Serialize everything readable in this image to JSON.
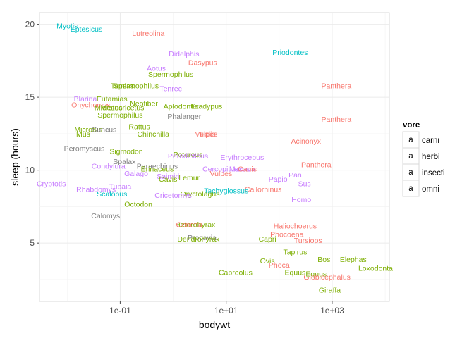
{
  "chart_data": {
    "type": "scatter",
    "xlabel": "bodywt",
    "ylabel": "sleep (hours)",
    "x_scale": "log10",
    "xlim": [
      0.003,
      12000
    ],
    "ylim": [
      1,
      20.8
    ],
    "x_ticks": [
      {
        "value": 0.1,
        "label": "1e-01"
      },
      {
        "value": 10,
        "label": "1e+01"
      },
      {
        "value": 1000,
        "label": "1e+03"
      }
    ],
    "y_ticks": [
      {
        "value": 5,
        "label": "5"
      },
      {
        "value": 10,
        "label": "10"
      },
      {
        "value": 15,
        "label": "15"
      },
      {
        "value": 20,
        "label": "20"
      }
    ],
    "grid": true,
    "legend": {
      "title": "vore",
      "position": "right",
      "key_glyph": "a",
      "entries": [
        {
          "name": "carni",
          "color": "#F8766D"
        },
        {
          "name": "herbi",
          "color": "#7CAE00"
        },
        {
          "name": "insecti",
          "color": "#00BFC4"
        },
        {
          "name": "omni",
          "color": "#C77CFF"
        }
      ]
    },
    "na_color": "#7F7F7F",
    "points": [
      {
        "label": "Myotis",
        "x": 0.01,
        "y": 19.9,
        "vore": "insecti"
      },
      {
        "label": "Eptesicus",
        "x": 0.023,
        "y": 19.7,
        "vore": "insecti"
      },
      {
        "label": "Lutreolina",
        "x": 0.34,
        "y": 19.4,
        "vore": "carni"
      },
      {
        "label": "Priodontes",
        "x": 161,
        "y": 18.1,
        "vore": "insecti"
      },
      {
        "label": "Didelphis",
        "x": 1.6,
        "y": 18.0,
        "vore": "omni"
      },
      {
        "label": "Dasypus",
        "x": 3.6,
        "y": 17.4,
        "vore": "carni"
      },
      {
        "label": "Aotus",
        "x": 0.48,
        "y": 17.0,
        "vore": "omni"
      },
      {
        "label": "Spermophilus",
        "x": 0.9,
        "y": 16.6,
        "vore": "herbi"
      },
      {
        "label": "Spermophilus",
        "x": 0.2,
        "y": 15.8,
        "vore": "herbi"
      },
      {
        "label": "Tamias",
        "x": 0.11,
        "y": 15.8,
        "vore": "herbi"
      },
      {
        "label": "Panthera",
        "x": 1200,
        "y": 15.8,
        "vore": "carni"
      },
      {
        "label": "Tenrec",
        "x": 0.9,
        "y": 15.6,
        "vore": "omni"
      },
      {
        "label": "Blarina",
        "x": 0.022,
        "y": 14.9,
        "vore": "omni"
      },
      {
        "label": "Eutamias",
        "x": 0.07,
        "y": 14.9,
        "vore": "herbi"
      },
      {
        "label": "Onychomys",
        "x": 0.028,
        "y": 14.5,
        "vore": "carni"
      },
      {
        "label": "Neofiber",
        "x": 0.28,
        "y": 14.6,
        "vore": "herbi"
      },
      {
        "label": "Aplodontia",
        "x": 1.4,
        "y": 14.4,
        "vore": "herbi"
      },
      {
        "label": "Bradypus",
        "x": 4.3,
        "y": 14.4,
        "vore": "herbi"
      },
      {
        "label": "Microtus",
        "x": 0.06,
        "y": 14.3,
        "vore": "herbi"
      },
      {
        "label": "Mesocricetus",
        "x": 0.11,
        "y": 14.3,
        "vore": "herbi"
      },
      {
        "label": "Spermophilus",
        "x": 0.1,
        "y": 13.8,
        "vore": "herbi"
      },
      {
        "label": "Phalanger",
        "x": 1.62,
        "y": 13.7,
        "vore": null
      },
      {
        "label": "Panthera",
        "x": 1200,
        "y": 13.5,
        "vore": "carni"
      },
      {
        "label": "Rattus",
        "x": 0.23,
        "y": 13.0,
        "vore": "herbi"
      },
      {
        "label": "Microtus",
        "x": 0.025,
        "y": 12.8,
        "vore": "herbi"
      },
      {
        "label": "Suncus",
        "x": 0.05,
        "y": 12.8,
        "vore": null
      },
      {
        "label": "Mus",
        "x": 0.02,
        "y": 12.5,
        "vore": "herbi"
      },
      {
        "label": "Chinchilla",
        "x": 0.42,
        "y": 12.5,
        "vore": "herbi"
      },
      {
        "label": "Vulpes",
        "x": 4.2,
        "y": 12.5,
        "vore": "carni"
      },
      {
        "label": "Felis",
        "x": 4.5,
        "y": 12.5,
        "vore": "carni"
      },
      {
        "label": "Acinonyx",
        "x": 320,
        "y": 12.0,
        "vore": "carni"
      },
      {
        "label": "Peromyscus",
        "x": 0.021,
        "y": 11.5,
        "vore": null
      },
      {
        "label": "Sigmodon",
        "x": 0.13,
        "y": 11.3,
        "vore": "herbi"
      },
      {
        "label": "Potorous",
        "x": 1.9,
        "y": 11.1,
        "vore": "herbi"
      },
      {
        "label": "Perodicticus",
        "x": 1.9,
        "y": 11.0,
        "vore": "omni"
      },
      {
        "label": "Erythrocebus",
        "x": 20,
        "y": 10.9,
        "vore": "omni"
      },
      {
        "label": "Spalax",
        "x": 0.12,
        "y": 10.6,
        "vore": null
      },
      {
        "label": "Condylura",
        "x": 0.06,
        "y": 10.3,
        "vore": "omni"
      },
      {
        "label": "Paraechinus",
        "x": 0.5,
        "y": 10.3,
        "vore": null
      },
      {
        "label": "Panthera",
        "x": 500,
        "y": 10.4,
        "vore": "carni"
      },
      {
        "label": "Erinaceus",
        "x": 0.5,
        "y": 10.1,
        "vore": "herbi"
      },
      {
        "label": "Cercopithecus",
        "x": 10,
        "y": 10.1,
        "vore": "omni"
      },
      {
        "label": "Macaca",
        "x": 20,
        "y": 10.1,
        "vore": "omni"
      },
      {
        "label": "Canis",
        "x": 25,
        "y": 10.1,
        "vore": "carni"
      },
      {
        "label": "Vulpes",
        "x": 8,
        "y": 9.8,
        "vore": "carni"
      },
      {
        "label": "Galago",
        "x": 0.2,
        "y": 9.8,
        "vore": "omni"
      },
      {
        "label": "Pan",
        "x": 200,
        "y": 9.7,
        "vore": "omni"
      },
      {
        "label": "Saimiri",
        "x": 0.8,
        "y": 9.6,
        "vore": "omni"
      },
      {
        "label": "Lemur",
        "x": 2,
        "y": 9.5,
        "vore": "herbi"
      },
      {
        "label": "Cavis",
        "x": 0.8,
        "y": 9.4,
        "vore": "herbi"
      },
      {
        "label": "Papio",
        "x": 95,
        "y": 9.4,
        "vore": "omni"
      },
      {
        "label": "Cryptotis",
        "x": 0.005,
        "y": 9.1,
        "vore": "omni"
      },
      {
        "label": "Sus",
        "x": 300,
        "y": 9.1,
        "vore": "omni"
      },
      {
        "label": "Tupaia",
        "x": 0.1,
        "y": 8.9,
        "vore": "omni"
      },
      {
        "label": "Rhabdomys",
        "x": 0.035,
        "y": 8.7,
        "vore": "omni"
      },
      {
        "label": "Callorhinus",
        "x": 50,
        "y": 8.7,
        "vore": "carni"
      },
      {
        "label": "Tachyglossus",
        "x": 10,
        "y": 8.6,
        "vore": "insecti"
      },
      {
        "label": "Oryctolagus",
        "x": 3.2,
        "y": 8.4,
        "vore": "herbi"
      },
      {
        "label": "Scalopus",
        "x": 0.07,
        "y": 8.4,
        "vore": "insecti"
      },
      {
        "label": "Cricetomys",
        "x": 1.0,
        "y": 8.3,
        "vore": "omni"
      },
      {
        "label": "Homo",
        "x": 262,
        "y": 8.0,
        "vore": "omni"
      },
      {
        "label": "Octodon",
        "x": 0.22,
        "y": 7.7,
        "vore": "herbi"
      },
      {
        "label": "Calomys",
        "x": 0.053,
        "y": 6.9,
        "vore": null
      },
      {
        "label": "Heterohyrax",
        "x": 2.6,
        "y": 6.3,
        "vore": "herbi"
      },
      {
        "label": "Genetta",
        "x": 2.0,
        "y": 6.3,
        "vore": "carni"
      },
      {
        "label": "Haliochoerus",
        "x": 200,
        "y": 6.2,
        "vore": "carni"
      },
      {
        "label": "Phocoena",
        "x": 140,
        "y": 5.6,
        "vore": "carni"
      },
      {
        "label": "Procavia",
        "x": 3.5,
        "y": 5.4,
        "vore": null
      },
      {
        "label": "Dendrohyrax",
        "x": 3.0,
        "y": 5.3,
        "vore": "herbi"
      },
      {
        "label": "Capri",
        "x": 60,
        "y": 5.3,
        "vore": "herbi"
      },
      {
        "label": "Tursiops",
        "x": 350,
        "y": 5.2,
        "vore": "carni"
      },
      {
        "label": "Tapirus",
        "x": 200,
        "y": 4.4,
        "vore": "herbi"
      },
      {
        "label": "Bos",
        "x": 700,
        "y": 3.9,
        "vore": "herbi"
      },
      {
        "label": "Elephas",
        "x": 2500,
        "y": 3.9,
        "vore": "herbi"
      },
      {
        "label": "Ovis",
        "x": 60,
        "y": 3.8,
        "vore": "herbi"
      },
      {
        "label": "Phoca",
        "x": 100,
        "y": 3.5,
        "vore": "carni"
      },
      {
        "label": "Loxodonta",
        "x": 6600,
        "y": 3.3,
        "vore": "herbi"
      },
      {
        "label": "Capreolus",
        "x": 15,
        "y": 3.0,
        "vore": "herbi"
      },
      {
        "label": "Equus",
        "x": 200,
        "y": 3.0,
        "vore": "herbi"
      },
      {
        "label": "Equus",
        "x": 500,
        "y": 2.9,
        "vore": "herbi"
      },
      {
        "label": "Globicephalus",
        "x": 800,
        "y": 2.7,
        "vore": "carni"
      },
      {
        "label": "Giraffa",
        "x": 900,
        "y": 1.8,
        "vore": "herbi"
      }
    ]
  }
}
